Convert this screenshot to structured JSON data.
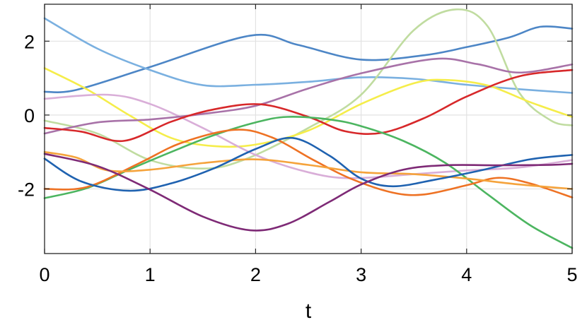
{
  "chart_data": {
    "type": "line",
    "title": "",
    "xlabel": "t",
    "ylabel": "",
    "xlim": [
      0,
      5
    ],
    "ylim": [
      -3.75,
      3
    ],
    "xticks": [
      0,
      1,
      2,
      3,
      4,
      5
    ],
    "yticks": [
      -2,
      0,
      2
    ],
    "xtick_labels": [
      "0",
      "1",
      "2",
      "3",
      "4",
      "5"
    ],
    "ytick_labels": [
      "-2",
      "0",
      "2"
    ],
    "grid": true,
    "legend": "none",
    "series": [
      {
        "color": "#4d86c6",
        "points": [
          [
            0,
            0.63
          ],
          [
            0.3,
            0.68
          ],
          [
            1.0,
            1.3
          ],
          [
            1.95,
            2.15
          ],
          [
            2.4,
            1.9
          ],
          [
            3.0,
            1.5
          ],
          [
            3.6,
            1.62
          ],
          [
            4.0,
            1.84
          ],
          [
            4.4,
            2.1
          ],
          [
            4.7,
            2.39
          ],
          [
            5.0,
            2.34
          ]
        ]
      },
      {
        "color": "#7ab0e0",
        "points": [
          [
            0,
            2.62
          ],
          [
            0.5,
            1.8
          ],
          [
            1.0,
            1.22
          ],
          [
            1.5,
            0.81
          ],
          [
            2.0,
            0.82
          ],
          [
            2.5,
            0.9
          ],
          [
            3.0,
            1.02
          ],
          [
            3.5,
            0.98
          ],
          [
            4.0,
            0.82
          ],
          [
            4.5,
            0.7
          ],
          [
            5.0,
            0.6
          ]
        ]
      },
      {
        "color": "#c0dca0",
        "points": [
          [
            0,
            -0.15
          ],
          [
            0.5,
            -0.5
          ],
          [
            1.0,
            -1.22
          ],
          [
            1.5,
            -1.45
          ],
          [
            1.9,
            -1.2
          ],
          [
            2.5,
            -0.35
          ],
          [
            3.0,
            0.55
          ],
          [
            3.5,
            2.3
          ],
          [
            3.9,
            2.86
          ],
          [
            4.2,
            2.4
          ],
          [
            4.5,
            0.6
          ],
          [
            4.8,
            -0.15
          ],
          [
            5.0,
            -0.28
          ]
        ]
      },
      {
        "color": "#f5ed4a",
        "points": [
          [
            0,
            1.27
          ],
          [
            0.4,
            0.7
          ],
          [
            0.8,
            0.0
          ],
          [
            1.2,
            -0.62
          ],
          [
            1.6,
            -0.84
          ],
          [
            2.0,
            -0.8
          ],
          [
            2.5,
            -0.42
          ],
          [
            3.0,
            0.3
          ],
          [
            3.5,
            0.86
          ],
          [
            3.8,
            0.95
          ],
          [
            4.2,
            0.8
          ],
          [
            4.6,
            0.35
          ],
          [
            5.0,
            -0.05
          ]
        ]
      },
      {
        "color": "#d9aed8",
        "points": [
          [
            0,
            0.44
          ],
          [
            0.6,
            0.55
          ],
          [
            1.0,
            0.3
          ],
          [
            1.5,
            -0.35
          ],
          [
            2.0,
            -1.08
          ],
          [
            2.5,
            -1.55
          ],
          [
            2.9,
            -1.71
          ],
          [
            3.5,
            -1.6
          ],
          [
            4.0,
            -1.5
          ],
          [
            4.5,
            -1.42
          ],
          [
            5.0,
            -1.22
          ]
        ]
      },
      {
        "color": "#a872a8",
        "points": [
          [
            0,
            -0.5
          ],
          [
            0.5,
            -0.2
          ],
          [
            1.0,
            -0.12
          ],
          [
            1.5,
            0.03
          ],
          [
            2.0,
            0.25
          ],
          [
            2.5,
            0.72
          ],
          [
            3.0,
            1.13
          ],
          [
            3.7,
            1.52
          ],
          [
            4.1,
            1.38
          ],
          [
            4.5,
            1.15
          ],
          [
            5.0,
            1.37
          ]
        ]
      },
      {
        "color": "#d7282a",
        "points": [
          [
            0,
            -0.35
          ],
          [
            0.35,
            -0.45
          ],
          [
            0.75,
            -0.7
          ],
          [
            1.2,
            -0.18
          ],
          [
            1.6,
            0.15
          ],
          [
            2.05,
            0.29
          ],
          [
            2.5,
            -0.05
          ],
          [
            2.85,
            -0.44
          ],
          [
            3.2,
            -0.48
          ],
          [
            3.6,
            -0.08
          ],
          [
            4.0,
            0.5
          ],
          [
            4.5,
            1.05
          ],
          [
            5.0,
            1.22
          ]
        ]
      },
      {
        "color": "#4cb560",
        "points": [
          [
            0,
            -2.25
          ],
          [
            0.4,
            -1.98
          ],
          [
            0.8,
            -1.48
          ],
          [
            1.2,
            -1.0
          ],
          [
            1.6,
            -0.55
          ],
          [
            2.0,
            -0.2
          ],
          [
            2.3,
            -0.05
          ],
          [
            2.7,
            -0.12
          ],
          [
            3.0,
            -0.3
          ],
          [
            3.4,
            -0.7
          ],
          [
            3.8,
            -1.3
          ],
          [
            4.2,
            -2.15
          ],
          [
            4.6,
            -2.98
          ],
          [
            5.0,
            -3.6
          ]
        ]
      },
      {
        "color": "#ee7224",
        "points": [
          [
            0,
            -2.0
          ],
          [
            0.4,
            -1.95
          ],
          [
            0.9,
            -1.3
          ],
          [
            1.3,
            -0.75
          ],
          [
            1.8,
            -0.4
          ],
          [
            2.15,
            -0.6
          ],
          [
            2.55,
            -1.22
          ],
          [
            2.9,
            -1.72
          ],
          [
            3.3,
            -2.1
          ],
          [
            3.6,
            -2.15
          ],
          [
            4.0,
            -1.9
          ],
          [
            4.3,
            -1.7
          ],
          [
            4.6,
            -1.85
          ],
          [
            5.0,
            -2.23
          ]
        ]
      },
      {
        "color": "#f5a33c",
        "points": [
          [
            0,
            -1.0
          ],
          [
            0.3,
            -1.15
          ],
          [
            0.6,
            -1.5
          ],
          [
            1.0,
            -1.48
          ],
          [
            1.5,
            -1.3
          ],
          [
            2.0,
            -1.2
          ],
          [
            2.5,
            -1.35
          ],
          [
            3.0,
            -1.55
          ],
          [
            3.5,
            -1.6
          ],
          [
            4.0,
            -1.72
          ],
          [
            4.5,
            -1.88
          ],
          [
            5.0,
            -2.0
          ]
        ]
      },
      {
        "color": "#1f62b0",
        "points": [
          [
            0,
            -1.18
          ],
          [
            0.35,
            -1.8
          ],
          [
            0.8,
            -2.05
          ],
          [
            1.2,
            -1.85
          ],
          [
            1.6,
            -1.45
          ],
          [
            2.0,
            -0.92
          ],
          [
            2.35,
            -0.62
          ],
          [
            2.7,
            -1.1
          ],
          [
            3.0,
            -1.72
          ],
          [
            3.3,
            -1.93
          ],
          [
            3.7,
            -1.75
          ],
          [
            4.1,
            -1.52
          ],
          [
            4.6,
            -1.2
          ],
          [
            5.0,
            -1.08
          ]
        ]
      },
      {
        "color": "#7e2a76",
        "points": [
          [
            0,
            -1.05
          ],
          [
            0.5,
            -1.38
          ],
          [
            1.0,
            -2.02
          ],
          [
            1.5,
            -2.75
          ],
          [
            1.95,
            -3.12
          ],
          [
            2.3,
            -2.95
          ],
          [
            2.7,
            -2.35
          ],
          [
            3.0,
            -1.88
          ],
          [
            3.4,
            -1.48
          ],
          [
            3.8,
            -1.36
          ],
          [
            4.3,
            -1.36
          ],
          [
            4.8,
            -1.35
          ],
          [
            5.0,
            -1.32
          ]
        ]
      }
    ]
  }
}
